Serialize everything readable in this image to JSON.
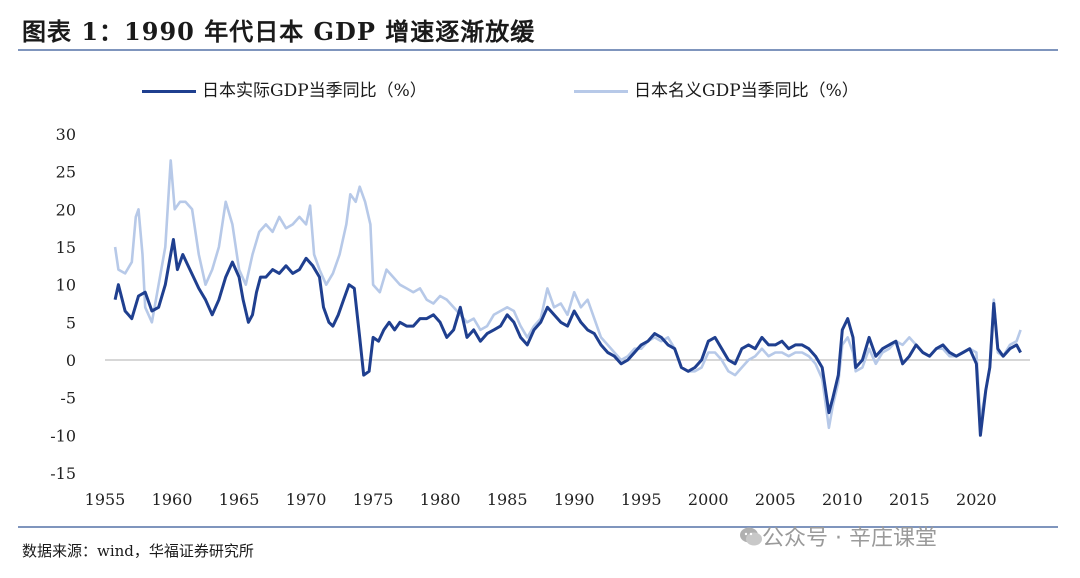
{
  "title": "图表 1：1990 年代日本 GDP 增速逐渐放缓",
  "source": "数据来源：wind，华福证券研究所",
  "watermark": "公众号 · 辛庄课堂",
  "watermark_icon": "wechat-icon",
  "colors": {
    "real": "#1f3f8f",
    "nominal": "#b7c9e8",
    "rule": "#7f95bd"
  },
  "chart_data": {
    "type": "line",
    "ylim": [
      -15,
      30
    ],
    "yticks": [
      30,
      25,
      20,
      15,
      10,
      5,
      0,
      -5,
      -10,
      -15
    ],
    "xlim": [
      1955,
      2024
    ],
    "xticks": [
      1955,
      1960,
      1965,
      1970,
      1975,
      1980,
      1985,
      1990,
      1995,
      2000,
      2005,
      2010,
      2015,
      2020
    ],
    "grid": false,
    "legend_position": "top",
    "series": [
      {
        "name": "日本实际GDP当季同比（%）",
        "color": "#1f3f8f",
        "points": [
          [
            1955.75,
            8
          ],
          [
            1956,
            10
          ],
          [
            1956.5,
            6.5
          ],
          [
            1957,
            5.5
          ],
          [
            1957.5,
            8.5
          ],
          [
            1958,
            9
          ],
          [
            1958.5,
            6.5
          ],
          [
            1959,
            7
          ],
          [
            1959.5,
            10
          ],
          [
            1959.8,
            13
          ],
          [
            1960.1,
            16
          ],
          [
            1960.4,
            12
          ],
          [
            1960.8,
            14
          ],
          [
            1961.2,
            12.5
          ],
          [
            1961.6,
            11
          ],
          [
            1962,
            9.5
          ],
          [
            1962.5,
            8
          ],
          [
            1963,
            6
          ],
          [
            1963.5,
            8
          ],
          [
            1964,
            11
          ],
          [
            1964.5,
            13
          ],
          [
            1965,
            11
          ],
          [
            1965.3,
            8
          ],
          [
            1965.7,
            5
          ],
          [
            1966,
            6
          ],
          [
            1966.3,
            9
          ],
          [
            1966.6,
            11
          ],
          [
            1967,
            11
          ],
          [
            1967.5,
            12
          ],
          [
            1968,
            11.5
          ],
          [
            1968.5,
            12.5
          ],
          [
            1969,
            11.5
          ],
          [
            1969.5,
            12
          ],
          [
            1970,
            13.5
          ],
          [
            1970.5,
            12.5
          ],
          [
            1971,
            11
          ],
          [
            1971.3,
            7
          ],
          [
            1971.7,
            5
          ],
          [
            1972,
            4.5
          ],
          [
            1972.4,
            6
          ],
          [
            1972.8,
            8
          ],
          [
            1973.2,
            10
          ],
          [
            1973.6,
            9.5
          ],
          [
            1974,
            3
          ],
          [
            1974.3,
            -2
          ],
          [
            1974.7,
            -1.5
          ],
          [
            1975,
            3
          ],
          [
            1975.4,
            2.5
          ],
          [
            1975.8,
            4
          ],
          [
            1976.2,
            5
          ],
          [
            1976.6,
            4
          ],
          [
            1977,
            5
          ],
          [
            1977.5,
            4.5
          ],
          [
            1978,
            4.5
          ],
          [
            1978.5,
            5.5
          ],
          [
            1979,
            5.5
          ],
          [
            1979.5,
            6
          ],
          [
            1980,
            5
          ],
          [
            1980.5,
            3
          ],
          [
            1981,
            4
          ],
          [
            1981.5,
            7
          ],
          [
            1982,
            3
          ],
          [
            1982.5,
            4
          ],
          [
            1983,
            2.5
          ],
          [
            1983.5,
            3.5
          ],
          [
            1984,
            4
          ],
          [
            1984.5,
            4.5
          ],
          [
            1985,
            6
          ],
          [
            1985.5,
            5
          ],
          [
            1986,
            3
          ],
          [
            1986.5,
            2
          ],
          [
            1987,
            4
          ],
          [
            1987.5,
            5
          ],
          [
            1988,
            7
          ],
          [
            1988.5,
            6
          ],
          [
            1989,
            5
          ],
          [
            1989.5,
            4.5
          ],
          [
            1990,
            6.5
          ],
          [
            1990.5,
            5
          ],
          [
            1991,
            4
          ],
          [
            1991.5,
            3.5
          ],
          [
            1992,
            2
          ],
          [
            1992.5,
            1
          ],
          [
            1993,
            0.5
          ],
          [
            1993.5,
            -0.5
          ],
          [
            1994,
            0
          ],
          [
            1994.5,
            1
          ],
          [
            1995,
            2
          ],
          [
            1995.5,
            2.5
          ],
          [
            1996,
            3.5
          ],
          [
            1996.5,
            3
          ],
          [
            1997,
            2
          ],
          [
            1997.5,
            1.5
          ],
          [
            1998,
            -1
          ],
          [
            1998.5,
            -1.5
          ],
          [
            1999,
            -1
          ],
          [
            1999.5,
            0
          ],
          [
            2000,
            2.5
          ],
          [
            2000.5,
            3
          ],
          [
            2001,
            1.5
          ],
          [
            2001.5,
            0
          ],
          [
            2002,
            -0.5
          ],
          [
            2002.5,
            1.5
          ],
          [
            2003,
            2
          ],
          [
            2003.5,
            1.5
          ],
          [
            2004,
            3
          ],
          [
            2004.5,
            2
          ],
          [
            2005,
            2
          ],
          [
            2005.5,
            2.5
          ],
          [
            2006,
            1.5
          ],
          [
            2006.5,
            2
          ],
          [
            2007,
            2
          ],
          [
            2007.5,
            1.5
          ],
          [
            2008,
            0.5
          ],
          [
            2008.5,
            -1
          ],
          [
            2009,
            -7
          ],
          [
            2009.3,
            -5
          ],
          [
            2009.7,
            -2
          ],
          [
            2010,
            4
          ],
          [
            2010.4,
            5.5
          ],
          [
            2010.8,
            3
          ],
          [
            2011,
            -1
          ],
          [
            2011.5,
            0
          ],
          [
            2012,
            3
          ],
          [
            2012.5,
            0.5
          ],
          [
            2013,
            1.5
          ],
          [
            2013.5,
            2
          ],
          [
            2014,
            2.5
          ],
          [
            2014.5,
            -0.5
          ],
          [
            2015,
            0.5
          ],
          [
            2015.5,
            2
          ],
          [
            2016,
            1
          ],
          [
            2016.5,
            0.5
          ],
          [
            2017,
            1.5
          ],
          [
            2017.5,
            2
          ],
          [
            2018,
            1
          ],
          [
            2018.5,
            0.5
          ],
          [
            2019,
            1
          ],
          [
            2019.5,
            1.5
          ],
          [
            2020,
            -0.5
          ],
          [
            2020.3,
            -10
          ],
          [
            2020.7,
            -4
          ],
          [
            2021,
            -1
          ],
          [
            2021.3,
            7.5
          ],
          [
            2021.6,
            1.5
          ],
          [
            2022,
            0.5
          ],
          [
            2022.5,
            1.5
          ],
          [
            2023,
            2
          ],
          [
            2023.3,
            1
          ]
        ]
      },
      {
        "name": "日本名义GDP当季同比（%）",
        "color": "#b7c9e8",
        "points": [
          [
            1955.75,
            15
          ],
          [
            1956,
            12
          ],
          [
            1956.5,
            11.5
          ],
          [
            1957,
            13
          ],
          [
            1957.3,
            19
          ],
          [
            1957.5,
            20
          ],
          [
            1957.8,
            14
          ],
          [
            1958,
            7
          ],
          [
            1958.5,
            5
          ],
          [
            1959,
            10
          ],
          [
            1959.5,
            15
          ],
          [
            1959.9,
            26.5
          ],
          [
            1960.2,
            20
          ],
          [
            1960.6,
            21
          ],
          [
            1961,
            21
          ],
          [
            1961.5,
            20
          ],
          [
            1962,
            14
          ],
          [
            1962.5,
            10
          ],
          [
            1963,
            12
          ],
          [
            1963.5,
            15
          ],
          [
            1964,
            21
          ],
          [
            1964.5,
            18
          ],
          [
            1965,
            12
          ],
          [
            1965.5,
            10
          ],
          [
            1966,
            14
          ],
          [
            1966.5,
            17
          ],
          [
            1967,
            18
          ],
          [
            1967.5,
            17
          ],
          [
            1968,
            19
          ],
          [
            1968.5,
            17.5
          ],
          [
            1969,
            18
          ],
          [
            1969.5,
            19
          ],
          [
            1970,
            18
          ],
          [
            1970.3,
            20.5
          ],
          [
            1970.6,
            14
          ],
          [
            1971,
            12
          ],
          [
            1971.5,
            10
          ],
          [
            1972,
            11.5
          ],
          [
            1972.5,
            14
          ],
          [
            1973,
            18
          ],
          [
            1973.3,
            22
          ],
          [
            1973.7,
            21
          ],
          [
            1974,
            23
          ],
          [
            1974.4,
            21
          ],
          [
            1974.8,
            18
          ],
          [
            1975,
            10
          ],
          [
            1975.5,
            9
          ],
          [
            1976,
            12
          ],
          [
            1976.5,
            11
          ],
          [
            1977,
            10
          ],
          [
            1977.5,
            9.5
          ],
          [
            1978,
            9
          ],
          [
            1978.5,
            9.5
          ],
          [
            1979,
            8
          ],
          [
            1979.5,
            7.5
          ],
          [
            1980,
            8.5
          ],
          [
            1980.5,
            8
          ],
          [
            1981,
            7
          ],
          [
            1981.5,
            6
          ],
          [
            1982,
            5
          ],
          [
            1982.5,
            5.5
          ],
          [
            1983,
            4
          ],
          [
            1983.5,
            4.5
          ],
          [
            1984,
            6
          ],
          [
            1984.5,
            6.5
          ],
          [
            1985,
            7
          ],
          [
            1985.5,
            6.5
          ],
          [
            1986,
            4.5
          ],
          [
            1986.5,
            3
          ],
          [
            1987,
            4.5
          ],
          [
            1987.5,
            5.5
          ],
          [
            1988,
            9.5
          ],
          [
            1988.5,
            7
          ],
          [
            1989,
            7.5
          ],
          [
            1989.5,
            6
          ],
          [
            1990,
            9
          ],
          [
            1990.5,
            7
          ],
          [
            1991,
            8
          ],
          [
            1991.5,
            5.5
          ],
          [
            1992,
            3
          ],
          [
            1992.5,
            2
          ],
          [
            1993,
            1
          ],
          [
            1993.5,
            0
          ],
          [
            1994,
            0.5
          ],
          [
            1994.5,
            1.5
          ],
          [
            1995,
            1.5
          ],
          [
            1995.5,
            2.5
          ],
          [
            1996,
            3
          ],
          [
            1996.5,
            2.5
          ],
          [
            1997,
            3
          ],
          [
            1997.5,
            1.5
          ],
          [
            1998,
            -1
          ],
          [
            1998.5,
            -1.5
          ],
          [
            1999,
            -1.5
          ],
          [
            1999.5,
            -1
          ],
          [
            2000,
            1
          ],
          [
            2000.5,
            1
          ],
          [
            2001,
            0
          ],
          [
            2001.5,
            -1.5
          ],
          [
            2002,
            -2
          ],
          [
            2002.5,
            -1
          ],
          [
            2003,
            0
          ],
          [
            2003.5,
            0.5
          ],
          [
            2004,
            1.5
          ],
          [
            2004.5,
            0.5
          ],
          [
            2005,
            1
          ],
          [
            2005.5,
            1
          ],
          [
            2006,
            0.5
          ],
          [
            2006.5,
            1
          ],
          [
            2007,
            1
          ],
          [
            2007.5,
            0.5
          ],
          [
            2008,
            -0.5
          ],
          [
            2008.5,
            -2.5
          ],
          [
            2009,
            -9
          ],
          [
            2009.3,
            -6
          ],
          [
            2009.7,
            -3
          ],
          [
            2010,
            2
          ],
          [
            2010.4,
            3
          ],
          [
            2010.8,
            1
          ],
          [
            2011,
            -1.5
          ],
          [
            2011.5,
            -1
          ],
          [
            2012,
            1.5
          ],
          [
            2012.5,
            -0.5
          ],
          [
            2013,
            1
          ],
          [
            2013.5,
            1.5
          ],
          [
            2014,
            2.5
          ],
          [
            2014.5,
            2
          ],
          [
            2015,
            3
          ],
          [
            2015.5,
            2
          ],
          [
            2016,
            1
          ],
          [
            2016.5,
            0.5
          ],
          [
            2017,
            1.5
          ],
          [
            2017.5,
            1.5
          ],
          [
            2018,
            0.5
          ],
          [
            2018.5,
            0.5
          ],
          [
            2019,
            1
          ],
          [
            2019.5,
            1.5
          ],
          [
            2020,
            1
          ],
          [
            2020.3,
            -8
          ],
          [
            2020.7,
            -4
          ],
          [
            2021,
            -1
          ],
          [
            2021.3,
            8
          ],
          [
            2021.6,
            1
          ],
          [
            2022,
            0.5
          ],
          [
            2022.5,
            2
          ],
          [
            2023,
            2.5
          ],
          [
            2023.3,
            4
          ]
        ]
      }
    ]
  }
}
